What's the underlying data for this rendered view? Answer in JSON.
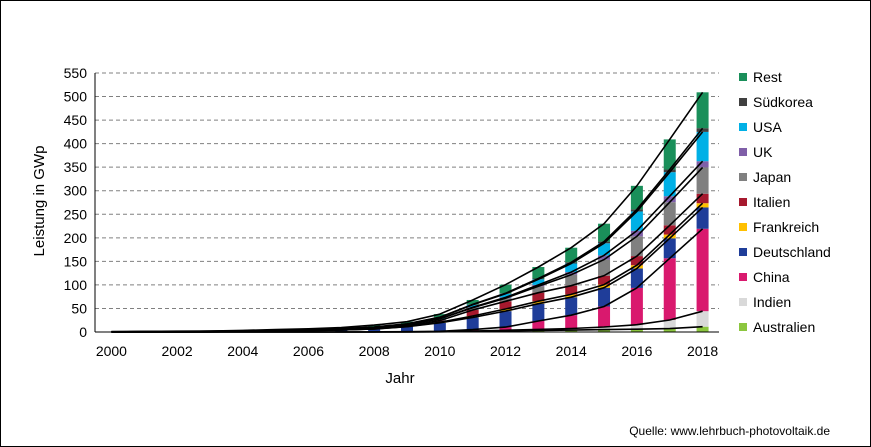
{
  "chart_data": {
    "type": "bar",
    "stacked": true,
    "ylabel": "Leistung in GWp",
    "xlabel": "Jahr",
    "ylim": [
      0,
      550
    ],
    "yticks": [
      0,
      50,
      100,
      150,
      200,
      250,
      300,
      350,
      400,
      450,
      500,
      550
    ],
    "xticks": [
      "2000",
      "2002",
      "2004",
      "2006",
      "2008",
      "2010",
      "2012",
      "2014",
      "2016",
      "2018"
    ],
    "grid": true,
    "legend_position": "right",
    "categories": [
      "2000",
      "2001",
      "2002",
      "2003",
      "2004",
      "2005",
      "2006",
      "2007",
      "2008",
      "2009",
      "2010",
      "2011",
      "2012",
      "2013",
      "2014",
      "2015",
      "2016",
      "2017",
      "2018"
    ],
    "series": [
      {
        "name": "Australien",
        "color": "#8cc63f",
        "values": [
          0,
          0,
          0,
          0,
          0,
          0,
          0,
          0,
          0,
          0.2,
          0.5,
          1.4,
          2.4,
          3.2,
          4.1,
          5.1,
          5.9,
          7.2,
          11.3
        ]
      },
      {
        "name": "Indien",
        "color": "#d9d9d9",
        "values": [
          0,
          0,
          0,
          0,
          0,
          0,
          0,
          0,
          0,
          0.1,
          0.2,
          0.5,
          1.2,
          2.3,
          3.4,
          5.6,
          9.6,
          18.3,
          32.9
        ]
      },
      {
        "name": "China",
        "color": "#d9196e",
        "values": [
          0,
          0,
          0,
          0,
          0,
          0.1,
          0.1,
          0.1,
          0.2,
          0.3,
          0.8,
          3.1,
          6.7,
          17.8,
          28.2,
          43.5,
          78.1,
          131.1,
          175.0
        ]
      },
      {
        "name": "Deutschland",
        "color": "#1f3d99",
        "values": [
          0.1,
          0.2,
          0.3,
          0.4,
          1.1,
          2.1,
          2.9,
          4.2,
          6.1,
          10.6,
          18.0,
          25.9,
          34.1,
          36.7,
          38.2,
          39.8,
          41.2,
          42.3,
          45.3
        ]
      },
      {
        "name": "Frankreich",
        "color": "#ffc000",
        "values": [
          0,
          0,
          0,
          0,
          0,
          0,
          0,
          0,
          0.1,
          0.3,
          1.2,
          3.0,
          4.4,
          5.3,
          5.9,
          6.6,
          7.1,
          8.0,
          9.0
        ]
      },
      {
        "name": "Italien",
        "color": "#a6192e",
        "values": [
          0,
          0,
          0,
          0,
          0,
          0,
          0,
          0.1,
          0.5,
          1.2,
          3.5,
          12.8,
          16.4,
          18.2,
          18.6,
          18.9,
          19.3,
          19.7,
          20.1
        ]
      },
      {
        "name": "Japan",
        "color": "#808080",
        "values": [
          0.3,
          0.5,
          0.6,
          0.9,
          1.1,
          1.4,
          1.7,
          1.9,
          2.1,
          2.6,
          3.6,
          4.9,
          6.6,
          13.6,
          23.3,
          34.2,
          42.0,
          49.0,
          56.0
        ]
      },
      {
        "name": "UK",
        "color": "#7f5fa8",
        "values": [
          0,
          0,
          0,
          0,
          0,
          0,
          0,
          0,
          0,
          0,
          0.1,
          1.0,
          1.7,
          2.9,
          5.5,
          9.1,
          11.9,
          12.8,
          13.1
        ]
      },
      {
        "name": "USA",
        "color": "#00b0e6",
        "values": [
          0.1,
          0.1,
          0.2,
          0.3,
          0.4,
          0.5,
          0.6,
          0.8,
          1.2,
          1.7,
          2.9,
          5.2,
          7.7,
          12.0,
          18.3,
          25.6,
          40.9,
          51.0,
          62.2
        ]
      },
      {
        "name": "Südkorea",
        "color": "#404040",
        "values": [
          0,
          0,
          0,
          0,
          0,
          0,
          0,
          0.1,
          0.4,
          0.5,
          0.7,
          0.8,
          1.0,
          1.6,
          2.5,
          3.6,
          4.4,
          5.6,
          7.9
        ]
      },
      {
        "name": "Rest",
        "color": "#1a8f5a",
        "values": [
          0.3,
          0.4,
          0.5,
          0.6,
          0.8,
          1.1,
          1.5,
          2.1,
          4.0,
          4.4,
          6.5,
          9.4,
          18.2,
          24.4,
          31.0,
          38.0,
          50.0,
          64.0,
          76.2
        ]
      }
    ]
  },
  "legend_order": [
    "Rest",
    "Südkorea",
    "USA",
    "UK",
    "Japan",
    "Italien",
    "Frankreich",
    "Deutschland",
    "China",
    "Indien",
    "Australien"
  ],
  "source": "Quelle: www.lehrbuch-photovoltaik.de"
}
